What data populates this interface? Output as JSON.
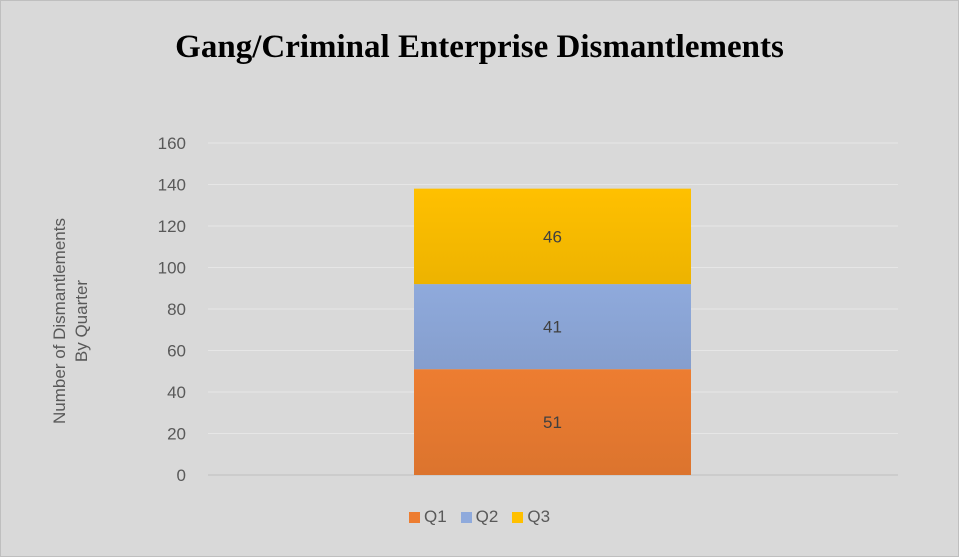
{
  "chart_data": {
    "type": "bar",
    "stacked": true,
    "title": "Gang/Criminal Enterprise Dismantlements",
    "ylabel": "Number of  Dismantlements\nBy Quarter",
    "xlabel": "",
    "categories": [
      ""
    ],
    "series": [
      {
        "name": "Q1",
        "values": [
          51
        ],
        "color": "#ed7d31"
      },
      {
        "name": "Q2",
        "values": [
          41
        ],
        "color": "#8faadc"
      },
      {
        "name": "Q3",
        "values": [
          46
        ],
        "color": "#ffc000"
      }
    ],
    "ylim": [
      0,
      160
    ],
    "yticks": [
      "0",
      "20",
      "40",
      "60",
      "80",
      "100",
      "120",
      "140",
      "160"
    ],
    "grid": true,
    "legend": "bottom"
  }
}
